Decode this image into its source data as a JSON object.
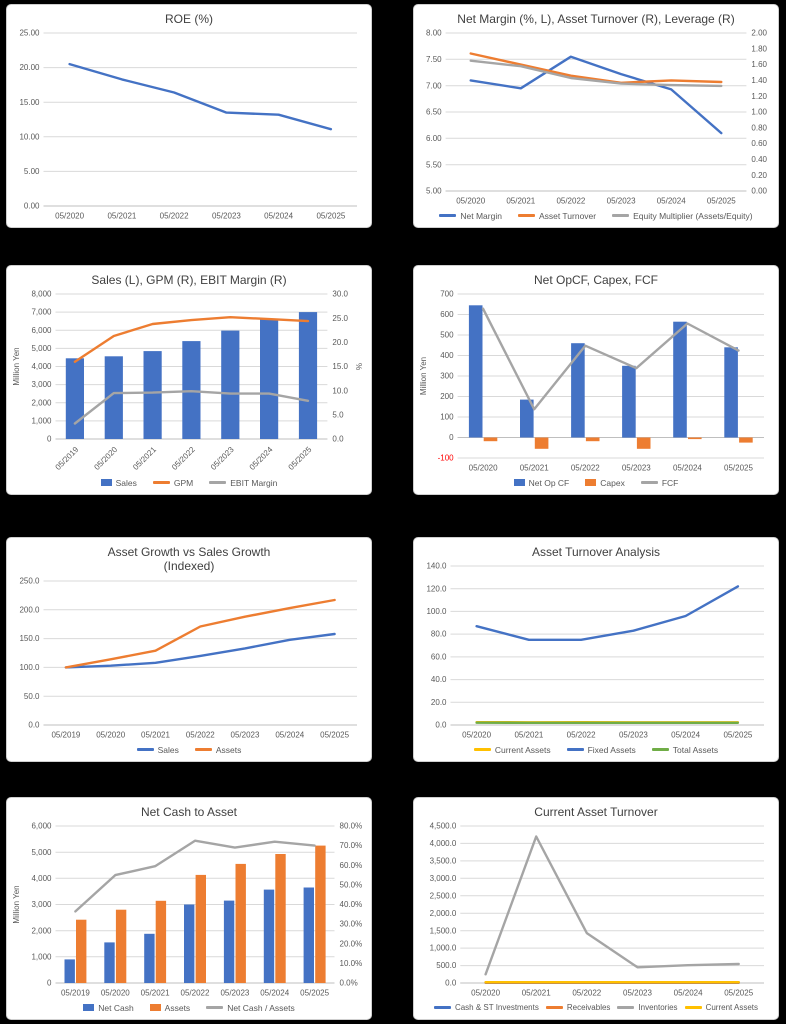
{
  "canvas": {
    "background": "#000000",
    "panel_background": "#FFFFFF"
  },
  "colors": {
    "blue": "#4472C4",
    "orange": "#ED7D31",
    "gray": "#A5A5A5",
    "yellow": "#FFC000",
    "green": "#70AD47",
    "title": "#404040",
    "tick": "#595959",
    "grid": "#D9D9D9",
    "axis": "#BFBFBF",
    "negative": "#FF0000"
  },
  "chart_data": [
    {
      "type": "line",
      "title": "ROE (%)",
      "categories": [
        "05/2020",
        "05/2021",
        "05/2022",
        "05/2023",
        "05/2024",
        "05/2025"
      ],
      "left_axis": {
        "min": 0,
        "max": 25,
        "step": 5,
        "format": "2dp"
      },
      "right_axis": null,
      "legend": false,
      "x_rotated": false,
      "series": [
        {
          "name": "ROE",
          "type": "line",
          "axis": "left",
          "color": "blue",
          "values": [
            20.5,
            18.3,
            16.4,
            13.5,
            13.2,
            11.1
          ]
        }
      ]
    },
    {
      "type": "line",
      "title": "Net Margin (%, L), Asset Turnover (R), Leverage (R)",
      "categories": [
        "05/2020",
        "05/2021",
        "05/2022",
        "05/2023",
        "05/2024",
        "05/2025"
      ],
      "left_axis": {
        "min": 5,
        "max": 8,
        "step": 0.5,
        "format": "2dp"
      },
      "right_axis": {
        "min": 0,
        "max": 2,
        "step": 0.2,
        "format": "2dp"
      },
      "legend": true,
      "x_rotated": false,
      "series": [
        {
          "name": "Net Margin",
          "type": "line",
          "axis": "left",
          "color": "blue",
          "values": [
            7.1,
            6.95,
            7.55,
            7.22,
            6.93,
            6.1
          ]
        },
        {
          "name": "Asset Turnover",
          "type": "line",
          "axis": "right",
          "color": "orange",
          "values": [
            1.74,
            1.6,
            1.46,
            1.37,
            1.4,
            1.38
          ]
        },
        {
          "name": "Equity Multiplier (Assets/Equity)",
          "type": "line",
          "axis": "right",
          "color": "gray",
          "values": [
            1.65,
            1.58,
            1.43,
            1.36,
            1.34,
            1.33
          ]
        }
      ]
    },
    {
      "type": "combo",
      "title": "Sales (L), GPM (R), EBIT Margin (R)",
      "categories": [
        "05/2019",
        "05/2020",
        "05/2021",
        "05/2022",
        "05/2023",
        "05/2024",
        "05/2025"
      ],
      "left_axis": {
        "min": 0,
        "max": 8000,
        "step": 1000,
        "format": "thous",
        "label": "Million Yen"
      },
      "right_axis": {
        "min": 0,
        "max": 30,
        "step": 5,
        "format": "1dp",
        "label": "%"
      },
      "legend": true,
      "x_rotated": true,
      "series": [
        {
          "name": "Sales",
          "type": "bar",
          "axis": "left",
          "color": "blue",
          "values": [
            4450,
            4560,
            4850,
            5400,
            5980,
            6600,
            7000
          ]
        },
        {
          "name": "GPM",
          "type": "line",
          "axis": "right",
          "color": "orange",
          "values": [
            16.0,
            21.3,
            23.8,
            24.6,
            25.2,
            24.8,
            24.4
          ]
        },
        {
          "name": "EBIT Margin",
          "type": "line",
          "axis": "right",
          "color": "gray",
          "values": [
            3.2,
            9.5,
            9.6,
            9.9,
            9.4,
            9.4,
            7.9
          ]
        }
      ]
    },
    {
      "type": "combo",
      "title": "Net OpCF, Capex, FCF",
      "categories": [
        "05/2020",
        "05/2021",
        "05/2022",
        "05/2023",
        "05/2024",
        "05/2025"
      ],
      "left_axis": {
        "min": -100,
        "max": 700,
        "step": 100,
        "format": "thous",
        "label": "Million Yen",
        "negative_red": true
      },
      "right_axis": null,
      "legend": true,
      "x_rotated": false,
      "series": [
        {
          "name": "Net Op CF",
          "type": "bar",
          "axis": "left",
          "color": "blue",
          "values": [
            645,
            185,
            460,
            350,
            565,
            440
          ]
        },
        {
          "name": "Capex",
          "type": "bar",
          "axis": "left",
          "color": "orange",
          "values": [
            -18,
            -55,
            -18,
            -55,
            -8,
            -25
          ]
        },
        {
          "name": "FCF",
          "type": "line",
          "axis": "left",
          "color": "gray",
          "values": [
            628,
            138,
            448,
            338,
            556,
            424
          ]
        }
      ]
    },
    {
      "type": "line",
      "title": "Asset Growth vs Sales Growth",
      "title2": "(Indexed)",
      "categories": [
        "05/2019",
        "05/2020",
        "05/2021",
        "05/2022",
        "05/2023",
        "05/2024",
        "05/2025"
      ],
      "left_axis": {
        "min": 0,
        "max": 250,
        "step": 50,
        "format": "1dp"
      },
      "right_axis": null,
      "legend": true,
      "x_rotated": false,
      "series": [
        {
          "name": "Sales",
          "type": "line",
          "axis": "left",
          "color": "blue",
          "values": [
            100,
            103,
            108,
            120,
            133,
            148,
            158
          ]
        },
        {
          "name": "Assets",
          "type": "line",
          "axis": "left",
          "color": "orange",
          "values": [
            100,
            114,
            129,
            171,
            188,
            203,
            217
          ]
        }
      ]
    },
    {
      "type": "line",
      "title": "Asset Turnover Analysis",
      "categories": [
        "05/2020",
        "05/2021",
        "05/2022",
        "05/2023",
        "05/2024",
        "05/2025"
      ],
      "left_axis": {
        "min": 0,
        "max": 140,
        "step": 20,
        "format": "1dp"
      },
      "right_axis": null,
      "legend": true,
      "x_rotated": false,
      "series": [
        {
          "name": "Current Assets",
          "type": "line",
          "axis": "left",
          "color": "yellow",
          "values": [
            2.5,
            2.4,
            2.5,
            2.4,
            2.4,
            2.4
          ]
        },
        {
          "name": "Fixed Assets",
          "type": "line",
          "axis": "left",
          "color": "blue",
          "values": [
            87,
            75,
            75,
            83,
            96,
            122
          ]
        },
        {
          "name": "Total Assets",
          "type": "line",
          "axis": "left",
          "color": "green",
          "values": [
            2.0,
            1.9,
            1.9,
            1.9,
            1.9,
            1.9
          ]
        }
      ]
    },
    {
      "type": "combo",
      "title": "Net Cash to Asset",
      "categories": [
        "05/2019",
        "05/2020",
        "05/2021",
        "05/2022",
        "05/2023",
        "05/2024",
        "05/2025"
      ],
      "left_axis": {
        "min": 0,
        "max": 6000,
        "step": 1000,
        "format": "thous",
        "label": "Million Yen"
      },
      "right_axis": {
        "min": 0,
        "max": 80,
        "step": 10,
        "format": "pct1"
      },
      "legend": true,
      "x_rotated": false,
      "series": [
        {
          "name": "Net Cash",
          "type": "bar",
          "axis": "left",
          "color": "blue",
          "values": [
            900,
            1550,
            1880,
            3000,
            3150,
            3570,
            3650
          ]
        },
        {
          "name": "Assets",
          "type": "bar",
          "axis": "left",
          "color": "orange",
          "values": [
            2420,
            2800,
            3140,
            4130,
            4550,
            4930,
            5250
          ]
        },
        {
          "name": "Net Cash / Assets",
          "type": "line",
          "axis": "right",
          "color": "gray",
          "values": [
            36.5,
            55.0,
            59.5,
            72.5,
            69.0,
            72.0,
            70.0
          ]
        }
      ]
    },
    {
      "type": "line",
      "title": "Current Asset Turnover",
      "categories": [
        "05/2020",
        "05/2021",
        "05/2022",
        "05/2023",
        "05/2024",
        "05/2025"
      ],
      "left_axis": {
        "min": 0,
        "max": 4500,
        "step": 500,
        "format": "thous1"
      },
      "right_axis": null,
      "legend": true,
      "x_rotated": false,
      "series": [
        {
          "name": "Cash & ST Investments",
          "type": "line",
          "axis": "left",
          "color": "blue",
          "values": [
            5,
            5,
            5,
            5,
            5,
            5
          ]
        },
        {
          "name": "Receivables",
          "type": "line",
          "axis": "left",
          "color": "orange",
          "values": [
            12,
            14,
            14,
            14,
            14,
            14
          ]
        },
        {
          "name": "Inventories",
          "type": "line",
          "axis": "left",
          "color": "gray",
          "values": [
            250,
            4200,
            1430,
            450,
            510,
            545
          ]
        },
        {
          "name": "Current Assets",
          "type": "line",
          "axis": "left",
          "color": "yellow",
          "values": [
            22,
            24,
            24,
            24,
            24,
            24
          ]
        }
      ]
    }
  ]
}
